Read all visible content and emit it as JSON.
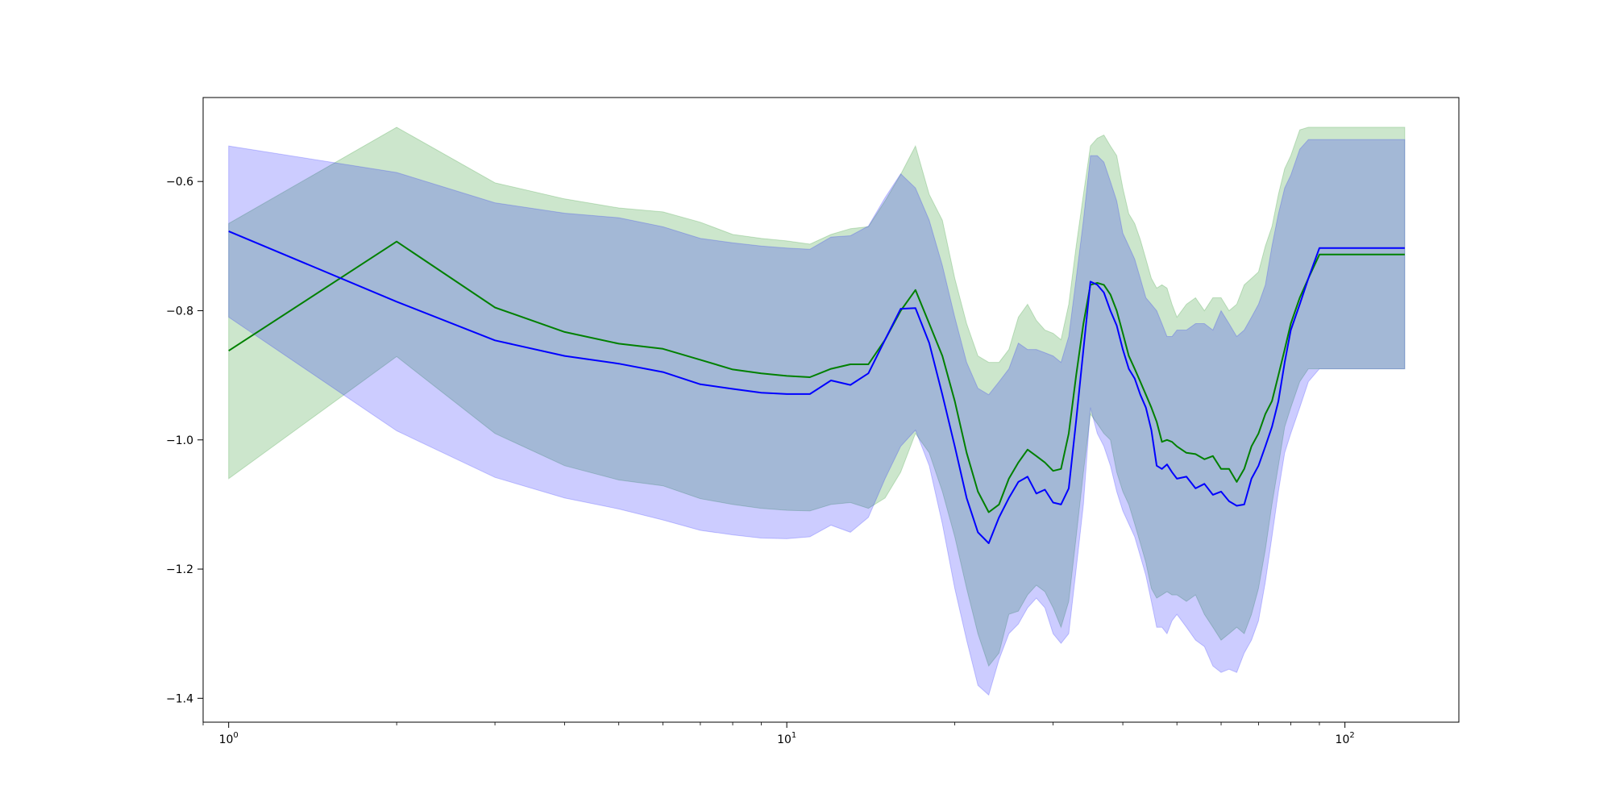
{
  "chart_data": {
    "type": "line",
    "xscale": "log",
    "xlim": [
      0.9,
      160
    ],
    "ylim": [
      -1.437,
      -0.47
    ],
    "grid": false,
    "x_ticks": [
      {
        "value": 1,
        "base": "10",
        "exp": "0"
      },
      {
        "value": 10,
        "base": "10",
        "exp": "1"
      },
      {
        "value": 100,
        "base": "10",
        "exp": "2"
      }
    ],
    "y_ticks": [
      {
        "value": -0.6,
        "label": "−0.6"
      },
      {
        "value": -0.8,
        "label": "−0.8"
      },
      {
        "value": -1.0,
        "label": "−1.0"
      },
      {
        "value": -1.2,
        "label": "−1.2"
      },
      {
        "value": -1.4,
        "label": "−1.4"
      }
    ],
    "series": [
      {
        "color": "#008000",
        "band_color": "#008000",
        "band_opacity": 0.2,
        "x": [
          1,
          2,
          3,
          4,
          5,
          6,
          7,
          8,
          9,
          10,
          11,
          12,
          13,
          14,
          15,
          16,
          17,
          18,
          19,
          20,
          21,
          22,
          23,
          24,
          25,
          26,
          27,
          28,
          29,
          30,
          31,
          32,
          33,
          34,
          35,
          36,
          37,
          38,
          39,
          40,
          41,
          42,
          43,
          44,
          45,
          46,
          47,
          48,
          49,
          50,
          52,
          54,
          56,
          58,
          60,
          62,
          64,
          66,
          68,
          70,
          72,
          74,
          76,
          78,
          80,
          83,
          86,
          90,
          95,
          100,
          110,
          128
        ],
        "y": [
          -0.862,
          -0.693,
          -0.795,
          -0.833,
          -0.851,
          -0.859,
          -0.876,
          -0.891,
          -0.897,
          -0.901,
          -0.903,
          -0.89,
          -0.883,
          -0.883,
          -0.845,
          -0.8,
          -0.768,
          -0.82,
          -0.87,
          -0.94,
          -1.02,
          -1.08,
          -1.112,
          -1.1,
          -1.06,
          -1.035,
          -1.015,
          -1.025,
          -1.035,
          -1.048,
          -1.045,
          -0.99,
          -0.9,
          -0.82,
          -0.76,
          -0.757,
          -0.76,
          -0.775,
          -0.8,
          -0.835,
          -0.87,
          -0.89,
          -0.91,
          -0.93,
          -0.95,
          -0.972,
          -1.003,
          -1.0,
          -1.003,
          -1.01,
          -1.02,
          -1.022,
          -1.03,
          -1.025,
          -1.045,
          -1.045,
          -1.065,
          -1.045,
          -1.01,
          -0.99,
          -0.96,
          -0.94,
          -0.9,
          -0.86,
          -0.82,
          -0.78,
          -0.75,
          -0.713,
          -0.713,
          -0.713,
          -0.713,
          -0.713
        ],
        "upper": [
          -0.665,
          -0.516,
          -0.602,
          -0.627,
          -0.641,
          -0.647,
          -0.663,
          -0.682,
          -0.688,
          -0.692,
          -0.697,
          -0.682,
          -0.673,
          -0.67,
          -0.63,
          -0.589,
          -0.545,
          -0.62,
          -0.66,
          -0.75,
          -0.82,
          -0.87,
          -0.88,
          -0.88,
          -0.86,
          -0.81,
          -0.79,
          -0.815,
          -0.83,
          -0.835,
          -0.845,
          -0.79,
          -0.7,
          -0.62,
          -0.545,
          -0.533,
          -0.528,
          -0.545,
          -0.56,
          -0.61,
          -0.65,
          -0.665,
          -0.69,
          -0.72,
          -0.75,
          -0.765,
          -0.76,
          -0.765,
          -0.79,
          -0.81,
          -0.79,
          -0.78,
          -0.8,
          -0.78,
          -0.78,
          -0.8,
          -0.79,
          -0.76,
          -0.75,
          -0.74,
          -0.7,
          -0.67,
          -0.62,
          -0.58,
          -0.56,
          -0.52,
          -0.516,
          -0.516,
          -0.516,
          -0.516,
          -0.516,
          -0.516
        ],
        "lower": [
          -1.06,
          -0.871,
          -0.99,
          -1.04,
          -1.062,
          -1.071,
          -1.091,
          -1.1,
          -1.106,
          -1.109,
          -1.11,
          -1.1,
          -1.097,
          -1.106,
          -1.09,
          -1.05,
          -0.99,
          -1.02,
          -1.08,
          -1.15,
          -1.23,
          -1.3,
          -1.35,
          -1.33,
          -1.27,
          -1.265,
          -1.24,
          -1.225,
          -1.235,
          -1.26,
          -1.29,
          -1.25,
          -1.15,
          -1.05,
          -0.96,
          -0.975,
          -0.99,
          -1.0,
          -1.05,
          -1.08,
          -1.1,
          -1.13,
          -1.16,
          -1.19,
          -1.23,
          -1.245,
          -1.24,
          -1.235,
          -1.24,
          -1.24,
          -1.25,
          -1.24,
          -1.27,
          -1.29,
          -1.31,
          -1.3,
          -1.29,
          -1.3,
          -1.27,
          -1.23,
          -1.17,
          -1.1,
          -1.04,
          -0.98,
          -0.95,
          -0.91,
          -0.89,
          -0.89,
          -0.89,
          -0.89,
          -0.89,
          -0.89
        ]
      },
      {
        "color": "#0000ff",
        "band_color": "#0000ff",
        "band_opacity": 0.2,
        "x": [
          1,
          2,
          3,
          4,
          5,
          6,
          7,
          8,
          9,
          10,
          11,
          12,
          13,
          14,
          15,
          16,
          17,
          18,
          19,
          20,
          21,
          22,
          23,
          24,
          25,
          26,
          27,
          28,
          29,
          30,
          31,
          32,
          33,
          34,
          35,
          36,
          37,
          38,
          39,
          40,
          41,
          42,
          43,
          44,
          45,
          46,
          47,
          48,
          49,
          50,
          52,
          54,
          56,
          58,
          60,
          62,
          64,
          66,
          68,
          70,
          72,
          74,
          76,
          78,
          80,
          83,
          86,
          90,
          95,
          100,
          110,
          128
        ],
        "y": [
          -0.677,
          -0.786,
          -0.846,
          -0.87,
          -0.882,
          -0.895,
          -0.914,
          -0.921,
          -0.927,
          -0.929,
          -0.929,
          -0.908,
          -0.915,
          -0.897,
          -0.845,
          -0.797,
          -0.796,
          -0.85,
          -0.93,
          -1.01,
          -1.09,
          -1.143,
          -1.16,
          -1.12,
          -1.09,
          -1.065,
          -1.057,
          -1.083,
          -1.077,
          -1.097,
          -1.1,
          -1.075,
          -0.97,
          -0.86,
          -0.755,
          -0.76,
          -0.772,
          -0.8,
          -0.823,
          -0.86,
          -0.89,
          -0.905,
          -0.93,
          -0.95,
          -0.985,
          -1.04,
          -1.045,
          -1.038,
          -1.05,
          -1.06,
          -1.057,
          -1.075,
          -1.068,
          -1.085,
          -1.08,
          -1.095,
          -1.102,
          -1.1,
          -1.06,
          -1.04,
          -1.01,
          -0.98,
          -0.94,
          -0.88,
          -0.83,
          -0.79,
          -0.75,
          -0.703,
          -0.703,
          -0.703,
          -0.703,
          -0.703
        ],
        "upper": [
          -0.545,
          -0.586,
          -0.633,
          -0.649,
          -0.656,
          -0.67,
          -0.688,
          -0.695,
          -0.7,
          -0.703,
          -0.705,
          -0.686,
          -0.684,
          -0.669,
          -0.625,
          -0.588,
          -0.61,
          -0.66,
          -0.73,
          -0.81,
          -0.88,
          -0.92,
          -0.93,
          -0.91,
          -0.89,
          -0.85,
          -0.86,
          -0.86,
          -0.865,
          -0.87,
          -0.88,
          -0.84,
          -0.75,
          -0.66,
          -0.56,
          -0.56,
          -0.57,
          -0.6,
          -0.63,
          -0.68,
          -0.7,
          -0.72,
          -0.75,
          -0.78,
          -0.79,
          -0.8,
          -0.82,
          -0.84,
          -0.84,
          -0.83,
          -0.83,
          -0.82,
          -0.82,
          -0.83,
          -0.8,
          -0.82,
          -0.84,
          -0.83,
          -0.81,
          -0.79,
          -0.76,
          -0.7,
          -0.65,
          -0.61,
          -0.59,
          -0.55,
          -0.535,
          -0.535,
          -0.535,
          -0.535,
          -0.535,
          -0.535
        ],
        "lower": [
          -0.81,
          -0.986,
          -1.058,
          -1.09,
          -1.107,
          -1.124,
          -1.14,
          -1.147,
          -1.152,
          -1.153,
          -1.15,
          -1.132,
          -1.143,
          -1.12,
          -1.06,
          -1.01,
          -0.985,
          -1.04,
          -1.13,
          -1.23,
          -1.31,
          -1.38,
          -1.395,
          -1.34,
          -1.3,
          -1.285,
          -1.26,
          -1.245,
          -1.26,
          -1.3,
          -1.315,
          -1.3,
          -1.2,
          -1.1,
          -0.95,
          -0.99,
          -1.01,
          -1.04,
          -1.08,
          -1.11,
          -1.13,
          -1.15,
          -1.18,
          -1.21,
          -1.25,
          -1.29,
          -1.29,
          -1.3,
          -1.28,
          -1.27,
          -1.29,
          -1.31,
          -1.32,
          -1.35,
          -1.36,
          -1.355,
          -1.36,
          -1.33,
          -1.31,
          -1.28,
          -1.22,
          -1.15,
          -1.08,
          -1.02,
          -0.99,
          -0.95,
          -0.91,
          -0.89,
          -0.89,
          -0.89,
          -0.89,
          -0.89
        ]
      }
    ]
  }
}
